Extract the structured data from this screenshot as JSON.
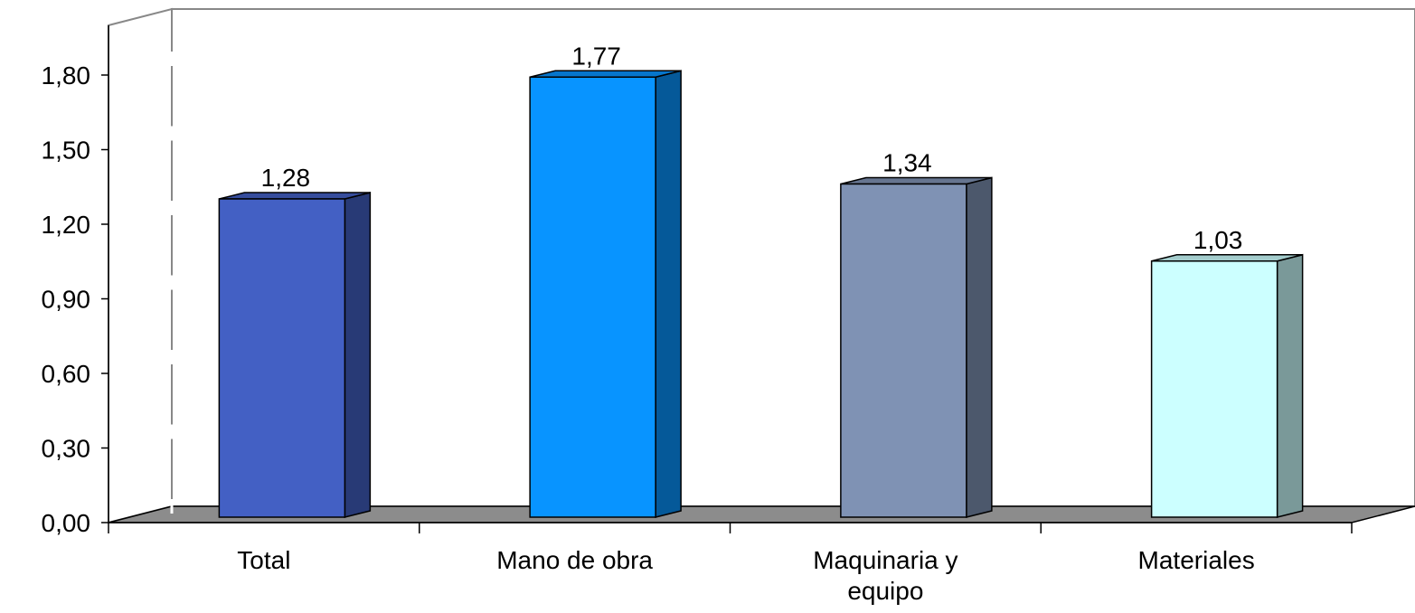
{
  "chart_data": {
    "type": "bar3d",
    "categories": [
      "Total",
      "Mano de obra",
      "Maquinaria y equipo",
      "Materiales"
    ],
    "values": [
      1.28,
      1.77,
      1.34,
      1.03
    ],
    "value_labels": [
      "1,28",
      "1,77",
      "1,34",
      "1,03"
    ],
    "colors": [
      "#4360c4",
      "#0894ff",
      "#7f92b4",
      "#ccffff"
    ],
    "ylim": [
      0,
      2.0
    ],
    "yticks": [
      {
        "value": 0,
        "label": "0,00"
      },
      {
        "value": 0.3,
        "label": "0,30"
      },
      {
        "value": 0.6,
        "label": "0,60"
      },
      {
        "value": 0.9,
        "label": "0,90"
      },
      {
        "value": 1.2,
        "label": "1,20"
      },
      {
        "value": 1.5,
        "label": "1,50"
      },
      {
        "value": 1.8,
        "label": "1,80"
      }
    ],
    "grid": false
  }
}
